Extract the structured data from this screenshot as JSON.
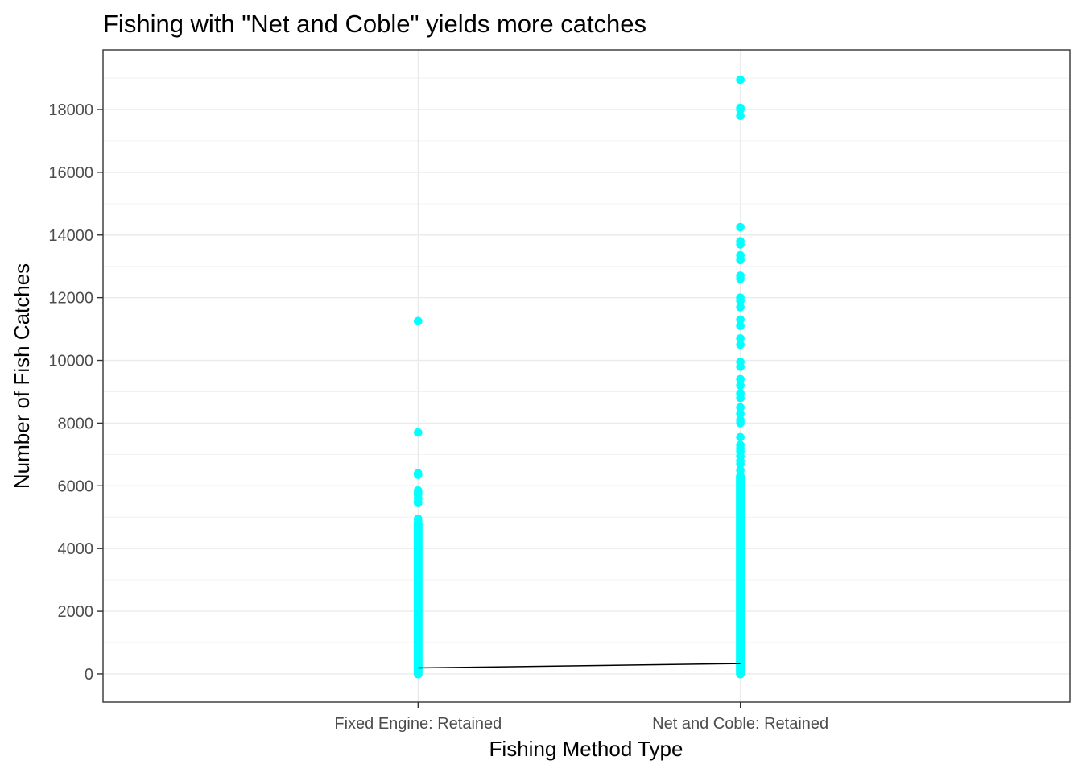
{
  "chart_data": {
    "type": "scatter",
    "title": "Fishing with \"Net and Coble\" yields more catches",
    "xlabel": "Fishing Method Type",
    "ylabel": "Number of Fish Catches",
    "categories": [
      "Fixed Engine: Retained",
      "Net and Coble: Retained"
    ],
    "ylim": [
      -900,
      19900
    ],
    "y_ticks": [
      0,
      2000,
      4000,
      6000,
      8000,
      10000,
      12000,
      14000,
      16000,
      18000
    ],
    "y_tick_labels": [
      "0",
      "2000",
      "4000",
      "6000",
      "8000",
      "10000",
      "12000",
      "14000",
      "16000",
      "18000"
    ],
    "grid": true,
    "legend": "none",
    "point_color": "#00FFFF",
    "line_color": "#000000",
    "series": [
      {
        "category": "Fixed Engine: Retained",
        "dense_range": [
          0,
          4800
        ],
        "values": [
          11250,
          7700,
          6400,
          6350,
          5850,
          5780,
          5700,
          5600,
          5500,
          5450,
          4950,
          4900,
          4800
        ]
      },
      {
        "category": "Net and Coble: Retained",
        "dense_range": [
          0,
          6300
        ],
        "values": [
          18950,
          18050,
          18000,
          17800,
          14250,
          13800,
          13700,
          13350,
          13200,
          12700,
          12600,
          12000,
          11900,
          11700,
          11300,
          11100,
          10700,
          10500,
          9950,
          9800,
          9400,
          9200,
          8950,
          8800,
          8500,
          8300,
          8100,
          8000,
          7550,
          7300,
          7200,
          7100,
          6950,
          6800,
          6700,
          6500,
          6300
        ]
      }
    ],
    "trend_line": {
      "x": [
        "Fixed Engine: Retained",
        "Net and Coble: Retained"
      ],
      "y": [
        190,
        330
      ]
    }
  }
}
